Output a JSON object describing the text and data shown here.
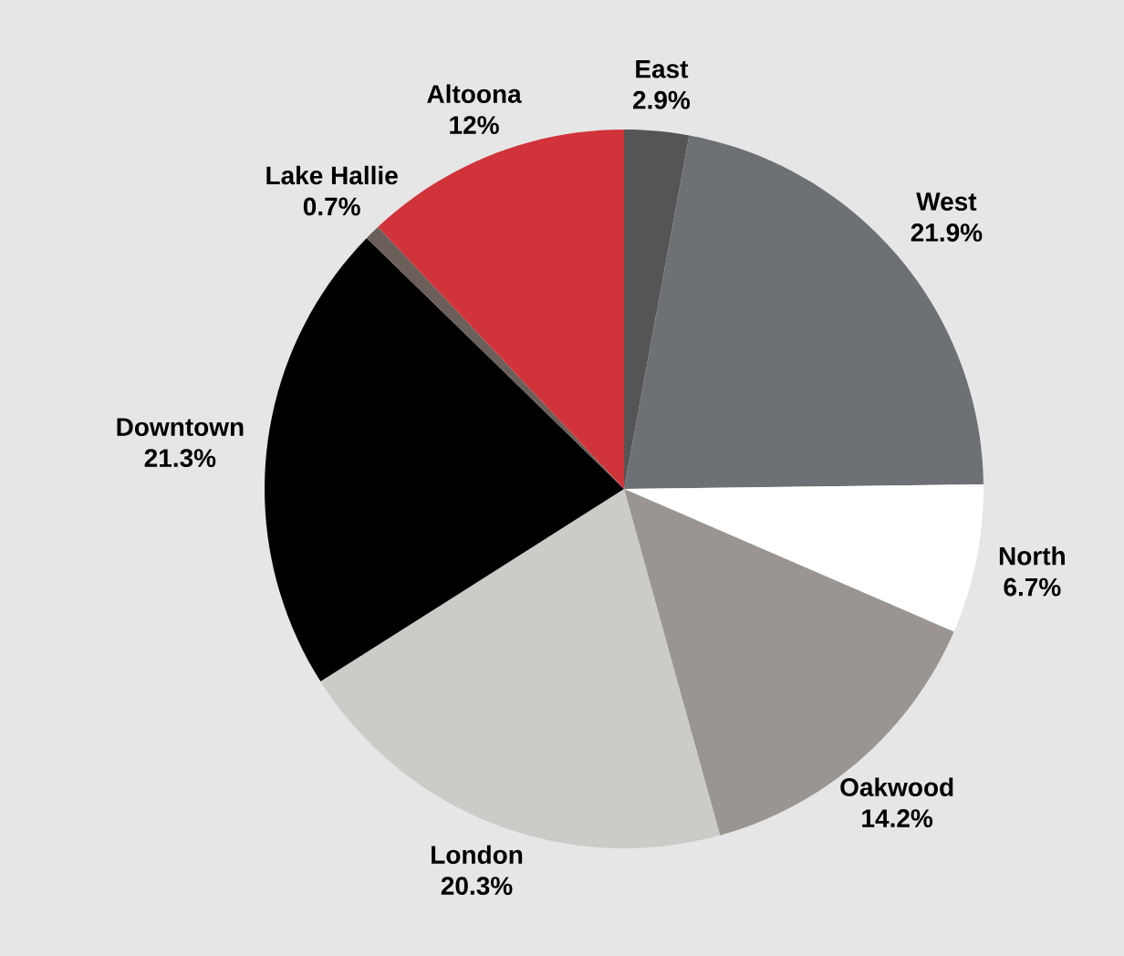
{
  "chart_data": {
    "type": "pie",
    "categories": [
      "East",
      "West",
      "North",
      "Oakwood",
      "London",
      "Downtown",
      "Lake Hallie",
      "Altoona"
    ],
    "values": [
      2.9,
      21.9,
      6.7,
      14.2,
      20.3,
      21.3,
      0.7,
      12
    ],
    "value_labels": [
      "2.9%",
      "21.9%",
      "6.7%",
      "14.2%",
      "20.3%",
      "21.3%",
      "0.7%",
      "12%"
    ],
    "colors": [
      "#555555",
      "#6d7075",
      "#ffffff",
      "#9a9591",
      "#cbcbc7",
      "#000000",
      "#6b5f5a",
      "#d0343a"
    ]
  }
}
